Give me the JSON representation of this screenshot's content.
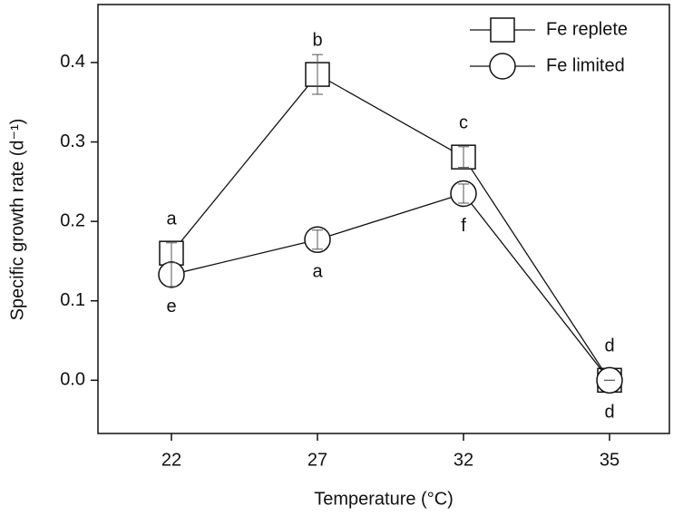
{
  "chart_data": {
    "type": "line",
    "x_label": "Temperature (°C)",
    "y_label": "Specific growth rate (d⁻¹)",
    "categories": [
      "22",
      "27",
      "32",
      "35"
    ],
    "series": [
      {
        "name": "Fe replete",
        "marker": "square",
        "color": "#111111",
        "values": [
          0.16,
          0.385,
          0.281,
          0.0
        ],
        "errors": [
          0.013,
          0.025,
          0.013,
          0.0
        ],
        "letters": [
          "a",
          "b",
          "c",
          "d"
        ],
        "letter_position": "above"
      },
      {
        "name": "Fe limited",
        "marker": "circle",
        "color": "#111111",
        "values": [
          0.133,
          0.177,
          0.235,
          0.0
        ],
        "errors": [
          0.015,
          0.012,
          0.012,
          0.0
        ],
        "letters": [
          "e",
          "a",
          "f",
          "d"
        ],
        "letter_position": "below"
      }
    ],
    "ylim": [
      -0.067,
      0.473
    ],
    "yticks": [
      {
        "value": 0,
        "label": "0.0"
      },
      0.1,
      0.2,
      0.3,
      0.4
    ],
    "legend": "upper right"
  }
}
